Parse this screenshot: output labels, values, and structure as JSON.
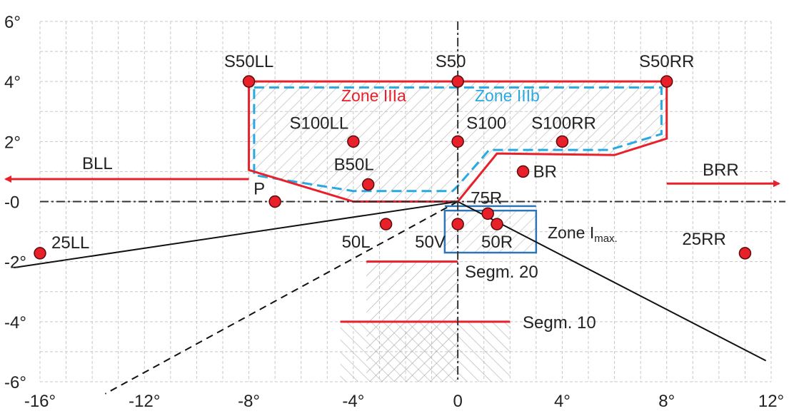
{
  "chart_data": {
    "type": "scatter",
    "x_unit": "deg",
    "y_unit": "deg",
    "xlim": [
      -16,
      12
    ],
    "ylim": [
      -6,
      6
    ],
    "grid": true,
    "x_ticks": [
      {
        "value": -16,
        "label": "-16°"
      },
      {
        "value": -12,
        "label": "-12°"
      },
      {
        "value": -8,
        "label": "-8°"
      },
      {
        "value": -4,
        "label": "-4°"
      },
      {
        "value": 0,
        "label": "0"
      },
      {
        "value": 4,
        "label": "4°"
      },
      {
        "value": 8,
        "label": "8°"
      },
      {
        "value": 12,
        "label": "12°"
      }
    ],
    "y_ticks": [
      {
        "value": 6,
        "label": "6°"
      },
      {
        "value": 4,
        "label": "4°"
      },
      {
        "value": 2,
        "label": "2°"
      },
      {
        "value": 0,
        "label": "-0"
      },
      {
        "value": -2,
        "label": "-2°"
      },
      {
        "value": -4,
        "label": "-4°"
      },
      {
        "value": -6,
        "label": "-6°"
      }
    ],
    "points": [
      {
        "name": "S50LL",
        "x": -8,
        "y": 4,
        "label": "S50LL"
      },
      {
        "name": "S50",
        "x": 0,
        "y": 4,
        "label": "S50"
      },
      {
        "name": "S50RR",
        "x": 8,
        "y": 4,
        "label": "S50RR"
      },
      {
        "name": "S100LL",
        "x": -4,
        "y": 2,
        "label": "S100LL"
      },
      {
        "name": "S100",
        "x": 0,
        "y": 2,
        "label": "S100"
      },
      {
        "name": "S100RR",
        "x": 4,
        "y": 2,
        "label": "S100RR"
      },
      {
        "name": "B50L",
        "x": -3.43,
        "y": 0.57,
        "label": "B50L"
      },
      {
        "name": "BR",
        "x": 2.5,
        "y": 1,
        "label": "BR"
      },
      {
        "name": "P",
        "x": -7,
        "y": 0,
        "label": "P"
      },
      {
        "name": "75R",
        "x": 1.15,
        "y": -0.4,
        "label": "75R"
      },
      {
        "name": "50L",
        "x": -2.75,
        "y": -0.75,
        "label": "50L"
      },
      {
        "name": "50V",
        "x": 0,
        "y": -0.75,
        "label": "50V"
      },
      {
        "name": "50R",
        "x": 1.5,
        "y": -0.75,
        "label": "50R"
      },
      {
        "name": "25LL",
        "x": -16,
        "y": -1.72,
        "label": "25LL"
      },
      {
        "name": "25RR",
        "x": 11,
        "y": -1.72,
        "label": "25RR"
      }
    ],
    "zones": {
      "zone_3a": {
        "label": "Zone IIIa",
        "color": "#e8202a",
        "polygon": [
          [
            -8,
            4
          ],
          [
            8,
            4
          ],
          [
            8,
            2.1
          ],
          [
            6,
            1.55
          ],
          [
            1.5,
            1.6
          ],
          [
            0,
            0
          ],
          [
            -4,
            0
          ],
          [
            -8,
            1.05
          ]
        ]
      },
      "zone_3b": {
        "label": "Zone IIIb",
        "color": "#29a9e0",
        "polygon": [
          [
            -7.8,
            3.8
          ],
          [
            7.8,
            3.8
          ],
          [
            7.8,
            2.25
          ],
          [
            5.8,
            1.72
          ],
          [
            1.2,
            1.72
          ],
          [
            0,
            0.52
          ],
          [
            -0.2,
            0.35
          ],
          [
            -4,
            0.35
          ],
          [
            -7.8,
            0.88
          ]
        ]
      },
      "zone_imax": {
        "label_main": "Zone I",
        "label_sub": "max.",
        "color": "#2e75b6",
        "rect": {
          "x1": -0.5,
          "x2": 3,
          "y1": -1.7,
          "y2": -0.3
        },
        "line_y": -0.15
      }
    },
    "segments": [
      {
        "name": "segm-20",
        "label": "Segm. 20",
        "x1": -3.5,
        "x2": 0,
        "y": -2,
        "hatch_bottom": -6
      },
      {
        "name": "segm-10",
        "label": "Segm. 10",
        "x1": -4.5,
        "x2": 2,
        "y": -4,
        "hatch_bottom": -6
      }
    ],
    "arrows": [
      {
        "name": "BLL",
        "label": "BLL",
        "x_from": -8,
        "x_to": -17.5,
        "y": 0.75
      },
      {
        "name": "BRR",
        "label": "BRR",
        "x_from": 8,
        "x_to": 12.3,
        "y": 0.6
      }
    ],
    "cutoff_lines": [
      {
        "name": "cutoff-left",
        "style": "solid",
        "from": [
          0,
          0
        ],
        "to": [
          -17,
          -2.2
        ]
      },
      {
        "name": "cutoff-right",
        "style": "solid",
        "from": [
          0,
          0
        ],
        "to": [
          11.8,
          -5.3
        ]
      },
      {
        "name": "cutoff-15deg",
        "style": "dashed",
        "from": [
          0,
          0
        ],
        "to": [
          -13.5,
          -6.4
        ]
      }
    ],
    "colors": {
      "point_fill": "#e8202a",
      "point_stroke": "#5a0a0a",
      "red_line": "#e8202a",
      "blue_line": "#29a9e0",
      "grid": "#c8c8c8",
      "axis": "#333333"
    }
  }
}
